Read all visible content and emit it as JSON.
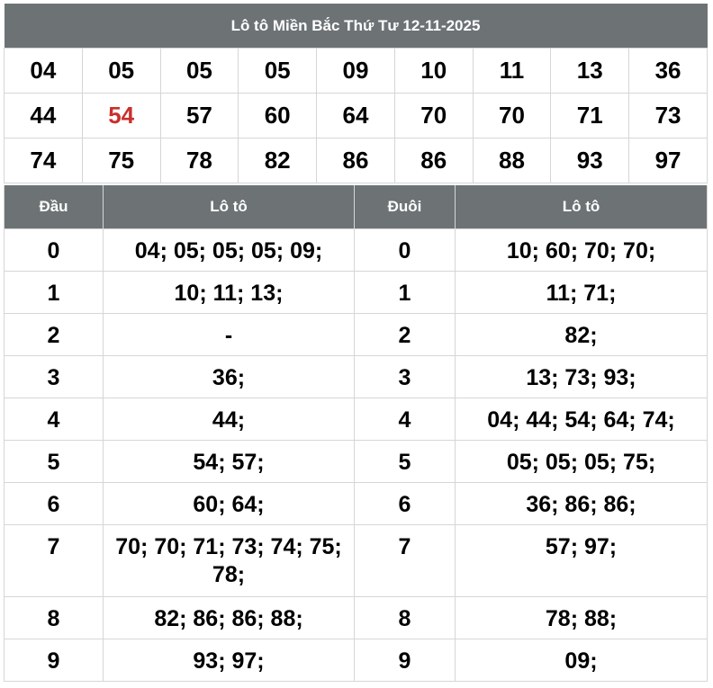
{
  "title": "Lô tô Miền Bắc Thứ Tư 12-11-2025",
  "numbers": [
    [
      "04",
      "05",
      "05",
      "05",
      "09",
      "10",
      "11",
      "13",
      "36"
    ],
    [
      "44",
      "54",
      "57",
      "60",
      "64",
      "70",
      "70",
      "71",
      "73"
    ],
    [
      "74",
      "75",
      "78",
      "82",
      "86",
      "86",
      "88",
      "93",
      "97"
    ]
  ],
  "highlight_color": "#c9302c",
  "header_color": "#6d7375",
  "headers": {
    "dau": "Đầu",
    "loto1": "Lô tô",
    "duoi": "Đuôi",
    "loto2": "Lô tô"
  },
  "rows": [
    {
      "dau": "0",
      "dau_loto": "04; 05; 05; 05; 09;",
      "duoi": "0",
      "duoi_loto": "10; 60; 70; 70;"
    },
    {
      "dau": "1",
      "dau_loto": "10; 11; 13;",
      "duoi": "1",
      "duoi_loto": "11; 71;"
    },
    {
      "dau": "2",
      "dau_loto": "-",
      "duoi": "2",
      "duoi_loto": "82;"
    },
    {
      "dau": "3",
      "dau_loto": "36;",
      "duoi": "3",
      "duoi_loto": "13; 73; 93;"
    },
    {
      "dau": "4",
      "dau_loto": "44;",
      "duoi": "4",
      "duoi_loto": "04; 44; 54; 64; 74;"
    },
    {
      "dau": "5",
      "dau_loto": "54; 57;",
      "duoi": "5",
      "duoi_loto": "05; 05; 05; 75;"
    },
    {
      "dau": "6",
      "dau_loto": "60; 64;",
      "duoi": "6",
      "duoi_loto": "36; 86; 86;"
    },
    {
      "dau": "7",
      "dau_loto": "70; 70; 71; 73; 74; 75; 78;",
      "duoi": "7",
      "duoi_loto": "57; 97;"
    },
    {
      "dau": "8",
      "dau_loto": "82; 86; 86; 88;",
      "duoi": "8",
      "duoi_loto": "78; 88;"
    },
    {
      "dau": "9",
      "dau_loto": "93; 97;",
      "duoi": "9",
      "duoi_loto": "09;"
    }
  ]
}
